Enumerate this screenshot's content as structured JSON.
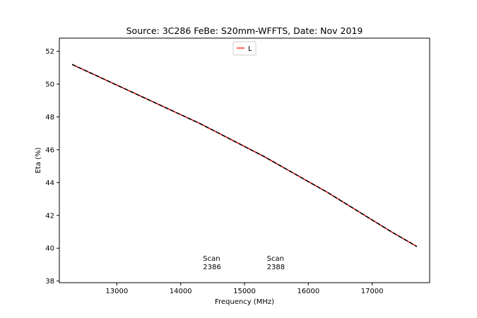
{
  "chart_data": {
    "type": "line",
    "title": "Source: 3C286 FeBe: S20mm-WFFTS, Date: Nov 2019",
    "xlabel": "Frequency (MHz)",
    "ylabel": "Eta (%)",
    "xlim": [
      12100,
      17900
    ],
    "ylim": [
      37.9,
      52.8
    ],
    "xticks": [
      13000,
      14000,
      15000,
      16000,
      17000
    ],
    "yticks": [
      38,
      40,
      42,
      44,
      46,
      48,
      50,
      52
    ],
    "grid": false,
    "legend": {
      "position": "top-center",
      "entries": [
        "L"
      ]
    },
    "series": [
      {
        "name": "L",
        "color": "#ff0000",
        "style": "solid",
        "x": [
          12300,
          12800,
          13300,
          13800,
          14300,
          14800,
          15300,
          15800,
          16300,
          16800,
          17300,
          17700
        ],
        "y": [
          51.2,
          50.3,
          49.4,
          48.5,
          47.6,
          46.6,
          45.6,
          44.5,
          43.4,
          42.2,
          41.0,
          40.1
        ]
      },
      {
        "color": "#000000",
        "style": "dashed",
        "x": [
          12300,
          12800,
          13300,
          13800,
          14300,
          14800,
          15300,
          15800,
          16300,
          16800,
          17300,
          17700
        ],
        "y": [
          51.2,
          50.3,
          49.4,
          48.5,
          47.6,
          46.6,
          45.6,
          44.5,
          43.4,
          42.2,
          41.0,
          40.1
        ]
      }
    ],
    "annotations": [
      {
        "line1": "Scan",
        "line2": "2386",
        "x": 14350,
        "y": 38.8
      },
      {
        "line1": "Scan",
        "line2": "2388",
        "x": 15350,
        "y": 38.8
      }
    ]
  }
}
